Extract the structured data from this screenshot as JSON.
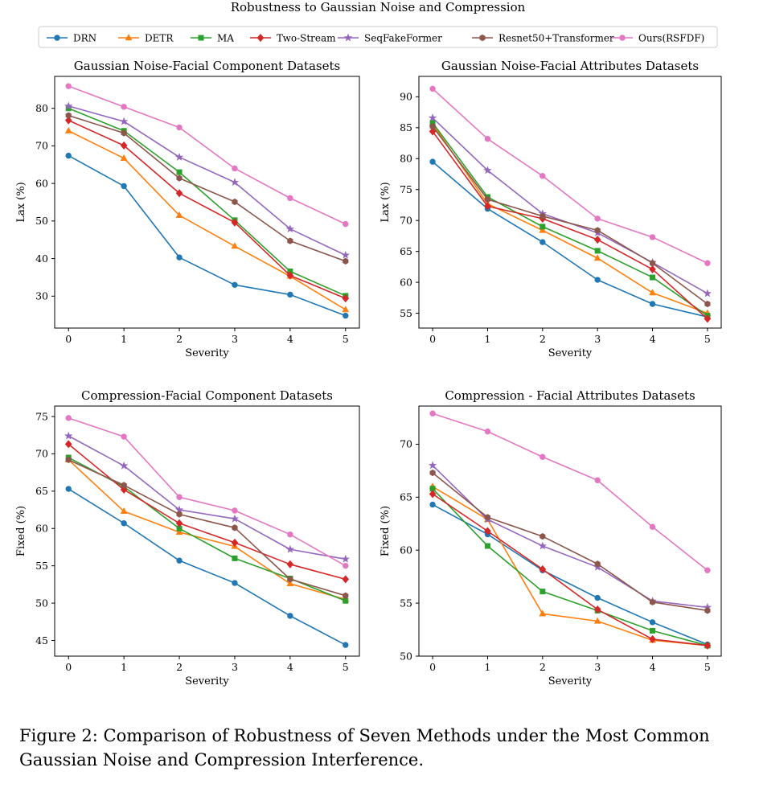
{
  "figure_title": "Robustness to Gaussian Noise and Compression",
  "caption": "Figure 2: Comparison of Robustness of Seven Methods under the Most Common Gaussian Noise and Compression Interference.",
  "legend": [
    {
      "name": "DRN",
      "color": "#1f77b4",
      "marker": "circle"
    },
    {
      "name": "DETR",
      "color": "#ff7f0e",
      "marker": "triangle"
    },
    {
      "name": "MA",
      "color": "#2ca02c",
      "marker": "square"
    },
    {
      "name": "Two-Stream",
      "color": "#d62728",
      "marker": "diamond"
    },
    {
      "name": "SeqFakeFormer",
      "color": "#9467bd",
      "marker": "star"
    },
    {
      "name": "Resnet50+Transformer",
      "color": "#8c564b",
      "marker": "hexagon"
    },
    {
      "name": "Ours(RSFDF)",
      "color": "#e377c2",
      "marker": "circle"
    }
  ],
  "chart_data": [
    {
      "type": "line",
      "title": "Gaussian Noise-Facial Component Datasets",
      "xlabel": "Severity",
      "ylabel": "Lax (%)",
      "x": [
        0,
        1,
        2,
        3,
        4,
        5
      ],
      "xticks": [
        "0",
        "1",
        "2",
        "3",
        "4",
        "5"
      ],
      "xlim": [
        -0.25,
        5.25
      ],
      "ylim": [
        21.5,
        88.5
      ],
      "yticks": [
        30,
        40,
        50,
        60,
        70,
        80
      ],
      "grid": false,
      "series": [
        {
          "name": "DRN",
          "values": [
            67.4,
            59.3,
            40.3,
            33.0,
            30.4,
            24.8
          ]
        },
        {
          "name": "DETR",
          "values": [
            74.0,
            66.7,
            51.5,
            43.3,
            35.3,
            26.4
          ]
        },
        {
          "name": "MA",
          "values": [
            80.0,
            74.0,
            63.0,
            50.2,
            36.6,
            30.1
          ]
        },
        {
          "name": "Two-Stream",
          "values": [
            76.8,
            70.1,
            57.4,
            49.6,
            35.5,
            29.4
          ]
        },
        {
          "name": "SeqFakeFormer",
          "values": [
            80.6,
            76.5,
            67.0,
            60.3,
            47.9,
            40.9
          ]
        },
        {
          "name": "Resnet50+Transformer",
          "values": [
            78.1,
            73.4,
            61.4,
            55.1,
            44.7,
            39.3
          ]
        },
        {
          "name": "Ours(RSFDF)",
          "values": [
            85.9,
            80.4,
            74.9,
            64.0,
            56.1,
            49.2
          ]
        }
      ]
    },
    {
      "type": "line",
      "title": "Gaussian Noise-Facial Attributes Datasets",
      "xlabel": "Severity",
      "ylabel": "Lax (%)",
      "x": [
        0,
        1,
        2,
        3,
        4,
        5
      ],
      "xticks": [
        "0",
        "1",
        "2",
        "3",
        "4",
        "5"
      ],
      "xlim": [
        -0.25,
        5.25
      ],
      "ylim": [
        52.6,
        93.3
      ],
      "yticks": [
        55,
        60,
        65,
        70,
        75,
        80,
        85,
        90
      ],
      "grid": false,
      "series": [
        {
          "name": "DRN",
          "values": [
            79.5,
            71.9,
            66.5,
            60.4,
            56.5,
            54.4
          ]
        },
        {
          "name": "DETR",
          "values": [
            85.6,
            72.7,
            68.4,
            63.9,
            58.3,
            55.0
          ]
        },
        {
          "name": "MA",
          "values": [
            85.8,
            73.8,
            69.0,
            65.1,
            60.8,
            54.6
          ]
        },
        {
          "name": "Two-Stream",
          "values": [
            84.4,
            72.3,
            70.3,
            66.9,
            62.1,
            54.1
          ]
        },
        {
          "name": "SeqFakeFormer",
          "values": [
            86.6,
            78.1,
            71.1,
            68.0,
            63.2,
            58.2
          ]
        },
        {
          "name": "Resnet50+Transformer",
          "values": [
            85.2,
            73.4,
            70.7,
            68.4,
            63.1,
            56.5
          ]
        },
        {
          "name": "Ours(RSFDF)",
          "values": [
            91.3,
            83.2,
            77.2,
            70.3,
            67.3,
            63.1
          ]
        }
      ]
    },
    {
      "type": "line",
      "title": "Compression-Facial Component Datasets",
      "xlabel": "Severity",
      "ylabel": "Fixed (%)",
      "x": [
        0,
        1,
        2,
        3,
        4,
        5
      ],
      "xticks": [
        "0",
        "1",
        "2",
        "3",
        "4",
        "5"
      ],
      "xlim": [
        -0.25,
        5.25
      ],
      "ylim": [
        42.9,
        76.4
      ],
      "yticks": [
        45,
        50,
        55,
        60,
        65,
        70,
        75
      ],
      "grid": false,
      "series": [
        {
          "name": "DRN",
          "values": [
            65.3,
            60.7,
            55.7,
            52.7,
            48.3,
            44.4
          ]
        },
        {
          "name": "DETR",
          "values": [
            69.2,
            62.3,
            59.5,
            57.6,
            52.6,
            50.5
          ]
        },
        {
          "name": "MA",
          "values": [
            69.5,
            65.6,
            60.0,
            56.0,
            53.3,
            50.3
          ]
        },
        {
          "name": "Two-Stream",
          "values": [
            71.3,
            65.2,
            60.7,
            58.1,
            55.2,
            53.2
          ]
        },
        {
          "name": "SeqFakeFormer",
          "values": [
            72.4,
            68.4,
            62.5,
            61.3,
            57.2,
            55.9
          ]
        },
        {
          "name": "Resnet50+Transformer",
          "values": [
            69.2,
            65.8,
            61.9,
            60.1,
            53.2,
            51.0
          ]
        },
        {
          "name": "Ours(RSFDF)",
          "values": [
            74.8,
            72.3,
            64.2,
            62.4,
            59.2,
            55.0
          ]
        }
      ]
    },
    {
      "type": "line",
      "title": "Compression - Facial Attributes Datasets",
      "xlabel": "Severity",
      "ylabel": "Fixed (%)",
      "x": [
        0,
        1,
        2,
        3,
        4,
        5
      ],
      "xticks": [
        "0",
        "1",
        "2",
        "3",
        "4",
        "5"
      ],
      "xlim": [
        -0.25,
        5.25
      ],
      "ylim": [
        50.0,
        73.6
      ],
      "yticks": [
        50,
        55,
        60,
        65,
        70
      ],
      "grid": false,
      "series": [
        {
          "name": "DRN",
          "values": [
            64.3,
            61.5,
            58.1,
            55.5,
            53.2,
            51.1
          ]
        },
        {
          "name": "DETR",
          "values": [
            66.0,
            62.9,
            54.0,
            53.3,
            51.5,
            51.0
          ]
        },
        {
          "name": "MA",
          "values": [
            65.8,
            60.4,
            56.1,
            54.3,
            52.4,
            51.0
          ]
        },
        {
          "name": "Two-Stream",
          "values": [
            65.3,
            61.8,
            58.2,
            54.4,
            51.6,
            51.0
          ]
        },
        {
          "name": "SeqFakeFormer",
          "values": [
            68.0,
            62.9,
            60.4,
            58.4,
            55.2,
            54.6
          ]
        },
        {
          "name": "Resnet50+Transformer",
          "values": [
            67.3,
            63.1,
            61.3,
            58.7,
            55.1,
            54.3
          ]
        },
        {
          "name": "Ours(RSFDF)",
          "values": [
            72.9,
            71.2,
            68.8,
            66.6,
            62.2,
            58.1
          ]
        }
      ]
    }
  ]
}
